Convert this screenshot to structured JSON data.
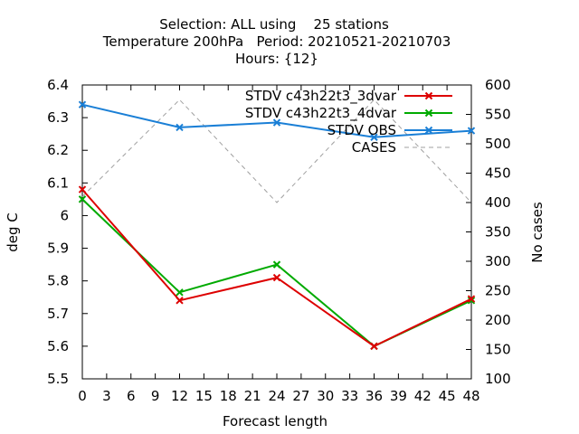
{
  "chart_data": {
    "type": "line",
    "title_lines": [
      "Selection: ALL using    25 stations",
      "Temperature 200hPa   Period: 20210521-20210703",
      "Hours: {12}"
    ],
    "xlabel": "Forecast length",
    "ylabel": "deg C",
    "y2label": "No cases",
    "xlim": [
      0,
      48
    ],
    "ylim": [
      5.5,
      6.4
    ],
    "y2lim": [
      100,
      600
    ],
    "x_ticks": [
      0,
      3,
      6,
      9,
      12,
      15,
      18,
      21,
      24,
      27,
      30,
      33,
      36,
      39,
      42,
      45,
      48
    ],
    "y_ticks": [
      "5.5",
      "5.6",
      "5.7",
      "5.8",
      "5.9",
      "6",
      "6.1",
      "6.2",
      "6.3",
      "6.4"
    ],
    "y2_ticks": [
      "100",
      "150",
      "200",
      "250",
      "300",
      "350",
      "400",
      "450",
      "500",
      "550",
      "600"
    ],
    "grid": false,
    "legend_position": "top-right",
    "series": [
      {
        "name": "STDV c43h22t3_3dvar",
        "axis": "y",
        "color": "#dd0000",
        "marker": "x",
        "x": [
          0,
          12,
          24,
          36,
          48
        ],
        "values": [
          6.08,
          5.74,
          5.81,
          5.6,
          5.745
        ]
      },
      {
        "name": "STDV c43h22t3_4dvar",
        "axis": "y",
        "color": "#00aa00",
        "marker": "x",
        "x": [
          0,
          12,
          24,
          36,
          48
        ],
        "values": [
          6.05,
          5.765,
          5.85,
          5.6,
          5.74
        ]
      },
      {
        "name": "STDV OBS",
        "axis": "y",
        "color": "#1a7fd6",
        "marker": "x",
        "x": [
          0,
          12,
          24,
          36,
          48
        ],
        "values": [
          6.34,
          6.27,
          6.285,
          6.24,
          6.26
        ]
      },
      {
        "name": "CASES",
        "axis": "y2",
        "color": "#a0a0a0",
        "dashed": true,
        "x": [
          0,
          12,
          24,
          36,
          48
        ],
        "values": [
          410,
          575,
          400,
          575,
          400
        ]
      }
    ]
  }
}
